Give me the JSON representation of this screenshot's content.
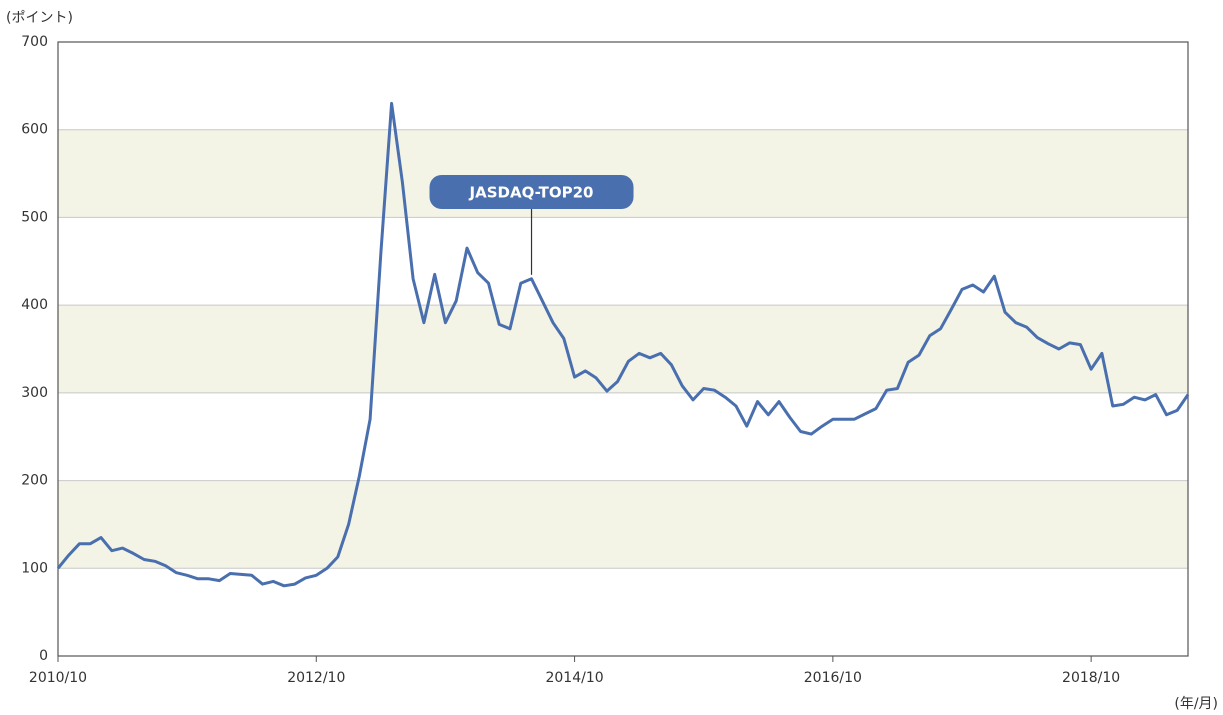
{
  "chart_data": {
    "type": "line",
    "y_label": "(ポイント)",
    "x_label": "(年/月)",
    "categories": [
      "2010/10",
      null,
      null,
      null,
      null,
      null,
      null,
      null,
      null,
      null,
      null,
      null,
      null,
      null,
      null,
      null,
      null,
      null,
      null,
      null,
      null,
      null,
      null,
      null,
      "2012/10",
      null,
      null,
      null,
      null,
      null,
      null,
      null,
      null,
      null,
      null,
      null,
      null,
      null,
      null,
      null,
      null,
      null,
      null,
      null,
      null,
      null,
      null,
      null,
      "2014/10",
      null,
      null,
      null,
      null,
      null,
      null,
      null,
      null,
      null,
      null,
      null,
      null,
      null,
      null,
      null,
      null,
      null,
      null,
      null,
      null,
      null,
      null,
      null,
      "2016/10",
      null,
      null,
      null,
      null,
      null,
      null,
      null,
      null,
      null,
      null,
      null,
      null,
      null,
      null,
      null,
      null,
      null,
      null,
      null,
      null,
      null,
      null,
      null,
      "2018/10",
      null,
      null,
      null,
      null,
      null,
      null,
      null,
      null,
      null
    ],
    "series": [
      {
        "name": "JASDAQ-TOP20",
        "color": "#4a6fae",
        "values": [
          100,
          115,
          128,
          128,
          135,
          120,
          123,
          117,
          110,
          108,
          103,
          95,
          92,
          88,
          88,
          86,
          94,
          93,
          92,
          82,
          85,
          80,
          82,
          89,
          92,
          100,
          113,
          150,
          205,
          270,
          460,
          630,
          540,
          430,
          380,
          435,
          380,
          405,
          465,
          437,
          425,
          378,
          373,
          425,
          430,
          405,
          380,
          362,
          318,
          325,
          317,
          302,
          313,
          336,
          345,
          340,
          345,
          332,
          308,
          292,
          305,
          303,
          295,
          285,
          262,
          290,
          275,
          290,
          272,
          256,
          253,
          262,
          270,
          270,
          270,
          276,
          282,
          303,
          305,
          335,
          343,
          365,
          373,
          395,
          418,
          423,
          415,
          433,
          392,
          380,
          375,
          363,
          356,
          350,
          357,
          355,
          327,
          345,
          285,
          287,
          295,
          292,
          298,
          275,
          280,
          298
        ]
      }
    ],
    "ylim": [
      0,
      700
    ],
    "yticks": [
      0,
      100,
      200,
      300,
      400,
      500,
      600,
      700
    ],
    "grid": true
  }
}
